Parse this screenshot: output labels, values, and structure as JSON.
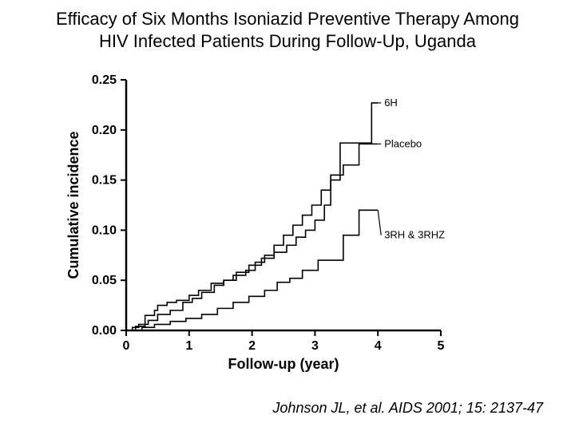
{
  "title_line1": "Efficacy of Six Months Isoniazid Preventive Therapy Among",
  "title_line2": "HIV Infected Patients During Follow-Up, Uganda",
  "citation": "Johnson JL, et al.  AIDS 2001; 15: 2137-47",
  "chart": {
    "type": "step-line",
    "xlabel": "Follow-up (year)",
    "ylabel": "Cumulative incidence",
    "xlim": [
      0,
      5
    ],
    "ylim": [
      0.0,
      0.25
    ],
    "xticks": [
      0,
      1,
      2,
      3,
      4,
      5
    ],
    "yticks": [
      0.0,
      0.05,
      0.1,
      0.15,
      0.2,
      0.25
    ],
    "ytick_labels": [
      "0.00",
      "0.05",
      "0.10",
      "0.15",
      "0.20",
      "0.25"
    ],
    "axis_color": "#000000",
    "line_color": "#000000",
    "line_width": 1.6,
    "background_color": "#ffffff",
    "label_fontsize": 18,
    "tick_fontsize": 16,
    "series_label_fontsize": 13,
    "series": [
      {
        "name": "6H",
        "label": "6H",
        "label_xy": [
          4.0,
          0.227
        ],
        "points": [
          [
            0.0,
            0.0
          ],
          [
            0.1,
            0.0
          ],
          [
            0.1,
            0.003
          ],
          [
            0.2,
            0.003
          ],
          [
            0.2,
            0.006
          ],
          [
            0.35,
            0.006
          ],
          [
            0.35,
            0.01
          ],
          [
            0.5,
            0.01
          ],
          [
            0.5,
            0.016
          ],
          [
            0.7,
            0.016
          ],
          [
            0.7,
            0.02
          ],
          [
            0.9,
            0.02
          ],
          [
            0.9,
            0.028
          ],
          [
            1.05,
            0.028
          ],
          [
            1.05,
            0.032
          ],
          [
            1.2,
            0.032
          ],
          [
            1.2,
            0.038
          ],
          [
            1.4,
            0.038
          ],
          [
            1.4,
            0.045
          ],
          [
            1.55,
            0.045
          ],
          [
            1.55,
            0.05
          ],
          [
            1.7,
            0.05
          ],
          [
            1.7,
            0.055
          ],
          [
            1.9,
            0.055
          ],
          [
            1.9,
            0.06
          ],
          [
            2.05,
            0.06
          ],
          [
            2.05,
            0.068
          ],
          [
            2.2,
            0.068
          ],
          [
            2.2,
            0.075
          ],
          [
            2.35,
            0.075
          ],
          [
            2.35,
            0.085
          ],
          [
            2.5,
            0.085
          ],
          [
            2.5,
            0.095
          ],
          [
            2.65,
            0.095
          ],
          [
            2.65,
            0.105
          ],
          [
            2.8,
            0.105
          ],
          [
            2.8,
            0.115
          ],
          [
            2.95,
            0.115
          ],
          [
            2.95,
            0.125
          ],
          [
            3.1,
            0.125
          ],
          [
            3.1,
            0.14
          ],
          [
            3.25,
            0.14
          ],
          [
            3.25,
            0.15
          ],
          [
            3.4,
            0.15
          ],
          [
            3.4,
            0.187
          ],
          [
            3.9,
            0.187
          ],
          [
            3.9,
            0.227
          ],
          [
            4.0,
            0.227
          ]
        ]
      },
      {
        "name": "Placebo",
        "label": "Placebo",
        "label_xy": [
          4.0,
          0.186
        ],
        "points": [
          [
            0.0,
            0.0
          ],
          [
            0.15,
            0.0
          ],
          [
            0.15,
            0.004
          ],
          [
            0.3,
            0.004
          ],
          [
            0.3,
            0.007
          ],
          [
            0.3,
            0.015
          ],
          [
            0.45,
            0.015
          ],
          [
            0.45,
            0.02
          ],
          [
            0.5,
            0.02
          ],
          [
            0.5,
            0.025
          ],
          [
            0.65,
            0.025
          ],
          [
            0.65,
            0.028
          ],
          [
            0.8,
            0.028
          ],
          [
            0.8,
            0.03
          ],
          [
            1.0,
            0.03
          ],
          [
            1.0,
            0.035
          ],
          [
            1.15,
            0.035
          ],
          [
            1.15,
            0.04
          ],
          [
            1.35,
            0.04
          ],
          [
            1.35,
            0.047
          ],
          [
            1.55,
            0.047
          ],
          [
            1.55,
            0.05
          ],
          [
            1.75,
            0.05
          ],
          [
            1.75,
            0.058
          ],
          [
            1.95,
            0.058
          ],
          [
            1.95,
            0.065
          ],
          [
            2.15,
            0.065
          ],
          [
            2.15,
            0.072
          ],
          [
            2.35,
            0.072
          ],
          [
            2.35,
            0.078
          ],
          [
            2.55,
            0.078
          ],
          [
            2.55,
            0.085
          ],
          [
            2.7,
            0.085
          ],
          [
            2.7,
            0.093
          ],
          [
            2.85,
            0.093
          ],
          [
            2.85,
            0.1
          ],
          [
            3.0,
            0.1
          ],
          [
            3.0,
            0.11
          ],
          [
            3.15,
            0.11
          ],
          [
            3.15,
            0.125
          ],
          [
            3.25,
            0.125
          ],
          [
            3.25,
            0.155
          ],
          [
            3.45,
            0.155
          ],
          [
            3.45,
            0.165
          ],
          [
            3.7,
            0.165
          ],
          [
            3.7,
            0.186
          ],
          [
            4.0,
            0.186
          ]
        ]
      },
      {
        "name": "3RH & 3RHZ",
        "label": "3RH & 3RHZ",
        "label_xy": [
          4.0,
          0.095
        ],
        "points": [
          [
            0.0,
            0.0
          ],
          [
            0.25,
            0.0
          ],
          [
            0.25,
            0.003
          ],
          [
            0.45,
            0.003
          ],
          [
            0.45,
            0.006
          ],
          [
            0.7,
            0.006
          ],
          [
            0.7,
            0.009
          ],
          [
            0.95,
            0.009
          ],
          [
            0.95,
            0.012
          ],
          [
            1.2,
            0.012
          ],
          [
            1.2,
            0.016
          ],
          [
            1.45,
            0.016
          ],
          [
            1.45,
            0.022
          ],
          [
            1.7,
            0.022
          ],
          [
            1.7,
            0.028
          ],
          [
            1.95,
            0.028
          ],
          [
            1.95,
            0.034
          ],
          [
            2.2,
            0.034
          ],
          [
            2.2,
            0.04
          ],
          [
            2.4,
            0.04
          ],
          [
            2.4,
            0.048
          ],
          [
            2.6,
            0.048
          ],
          [
            2.6,
            0.052
          ],
          [
            2.8,
            0.052
          ],
          [
            2.8,
            0.06
          ],
          [
            3.05,
            0.06
          ],
          [
            3.05,
            0.07
          ],
          [
            3.45,
            0.07
          ],
          [
            3.45,
            0.095
          ],
          [
            3.7,
            0.095
          ],
          [
            3.7,
            0.12
          ],
          [
            4.0,
            0.12
          ]
        ]
      }
    ]
  }
}
